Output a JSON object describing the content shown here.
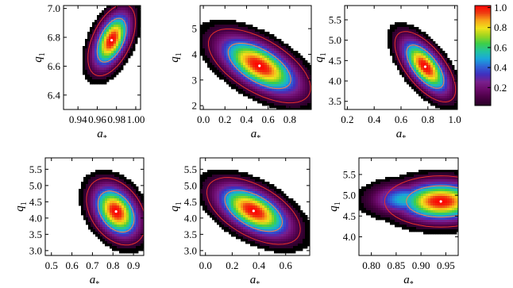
{
  "figure": {
    "colorbar": {
      "ticks": [
        {
          "value": 1.0,
          "label": "1.0"
        },
        {
          "value": 0.8,
          "label": "0.8"
        },
        {
          "value": 0.6,
          "label": "0.6"
        },
        {
          "value": 0.4,
          "label": "0.4"
        },
        {
          "value": 0.2,
          "label": "0.2"
        }
      ],
      "colormap": [
        "#2a0028",
        "#4a0045",
        "#6b0a6a",
        "#7a1f8c",
        "#3f2fbf",
        "#2f64d6",
        "#1aa6dc",
        "#22c49e",
        "#3ccf4a",
        "#9ed51f",
        "#f1e21c",
        "#f7a419",
        "#ee3a12",
        "#ff0000"
      ]
    }
  },
  "chart_data": [
    {
      "type": "heatmap",
      "xlabel": "a*",
      "ylabel": "q1",
      "xlim": [
        0.925,
        1.005
      ],
      "ylim": [
        6.3,
        7.02
      ],
      "xticks": [
        {
          "value": 0.94,
          "label": "0.94"
        },
        {
          "value": 0.96,
          "label": "0.96"
        },
        {
          "value": 0.98,
          "label": "0.98"
        },
        {
          "value": 1.0,
          "label": "1.00"
        }
      ],
      "yticks": [
        {
          "value": 6.4,
          "label": "6.4"
        },
        {
          "value": 6.6,
          "label": "6.6"
        },
        {
          "value": 6.8,
          "label": "6.8"
        },
        {
          "value": 7.0,
          "label": "7.0"
        }
      ],
      "peak": {
        "x": 0.975,
        "y": 6.78
      },
      "spread": {
        "x": 0.012,
        "y": 0.12
      },
      "corr": 0.5
    },
    {
      "type": "heatmap",
      "xlabel": "a*",
      "ylabel": "q1",
      "xlim": [
        -0.03,
        1.0
      ],
      "ylim": [
        1.85,
        5.9
      ],
      "xticks": [
        {
          "value": 0.0,
          "label": "0.0"
        },
        {
          "value": 0.2,
          "label": "0.2"
        },
        {
          "value": 0.4,
          "label": "0.4"
        },
        {
          "value": 0.6,
          "label": "0.6"
        },
        {
          "value": 0.8,
          "label": "0.8"
        }
      ],
      "yticks": [
        {
          "value": 2,
          "label": "2"
        },
        {
          "value": 3,
          "label": "3"
        },
        {
          "value": 4,
          "label": "4"
        },
        {
          "value": 5,
          "label": "5"
        }
      ],
      "peak": {
        "x": 0.52,
        "y": 3.55
      },
      "spread": {
        "x": 0.23,
        "y": 0.7
      },
      "corr": -0.6
    },
    {
      "type": "heatmap",
      "xlabel": "a*",
      "ylabel": "q1",
      "xlim": [
        0.18,
        1.02
      ],
      "ylim": [
        3.3,
        5.85
      ],
      "xticks": [
        {
          "value": 0.2,
          "label": "0.2"
        },
        {
          "value": 0.4,
          "label": "0.4"
        },
        {
          "value": 0.6,
          "label": "0.6"
        },
        {
          "value": 0.8,
          "label": "0.8"
        },
        {
          "value": 1.0,
          "label": "1.0"
        }
      ],
      "yticks": [
        {
          "value": 3.5,
          "label": "3.5"
        },
        {
          "value": 4.0,
          "label": "4.0"
        },
        {
          "value": 4.5,
          "label": "4.5"
        },
        {
          "value": 5.0,
          "label": "5.0"
        },
        {
          "value": 5.5,
          "label": "5.5"
        }
      ],
      "peak": {
        "x": 0.78,
        "y": 4.35
      },
      "spread": {
        "x": 0.11,
        "y": 0.42
      },
      "corr": -0.65
    },
    {
      "type": "heatmap",
      "xlabel": "a*",
      "ylabel": "q1",
      "xlim": [
        0.47,
        0.95
      ],
      "ylim": [
        2.85,
        5.85
      ],
      "xticks": [
        {
          "value": 0.5,
          "label": "0.5"
        },
        {
          "value": 0.6,
          "label": "0.6"
        },
        {
          "value": 0.7,
          "label": "0.7"
        },
        {
          "value": 0.8,
          "label": "0.8"
        },
        {
          "value": 0.9,
          "label": "0.9"
        }
      ],
      "yticks": [
        {
          "value": 3.0,
          "label": "3.0"
        },
        {
          "value": 3.5,
          "label": "3.5"
        },
        {
          "value": 4.0,
          "label": "4.0"
        },
        {
          "value": 4.5,
          "label": "4.5"
        },
        {
          "value": 5.0,
          "label": "5.0"
        },
        {
          "value": 5.5,
          "label": "5.5"
        }
      ],
      "peak": {
        "x": 0.815,
        "y": 4.2
      },
      "spread": {
        "x": 0.07,
        "y": 0.5
      },
      "corr": -0.35
    },
    {
      "type": "heatmap",
      "xlabel": "a*",
      "ylabel": "q1",
      "xlim": [
        -0.04,
        0.78
      ],
      "ylim": [
        2.85,
        5.85
      ],
      "xticks": [
        {
          "value": 0.0,
          "label": "0.0"
        },
        {
          "value": 0.2,
          "label": "0.2"
        },
        {
          "value": 0.4,
          "label": "0.4"
        },
        {
          "value": 0.6,
          "label": "0.6"
        }
      ],
      "yticks": [
        {
          "value": 3.0,
          "label": "3.0"
        },
        {
          "value": 3.5,
          "label": "3.5"
        },
        {
          "value": 4.0,
          "label": "4.0"
        },
        {
          "value": 4.5,
          "label": "4.5"
        },
        {
          "value": 5.0,
          "label": "5.0"
        },
        {
          "value": 5.5,
          "label": "5.5"
        }
      ],
      "peak": {
        "x": 0.36,
        "y": 4.22
      },
      "spread": {
        "x": 0.17,
        "y": 0.5
      },
      "corr": -0.55
    },
    {
      "type": "heatmap",
      "xlabel": "a*",
      "ylabel": "q1",
      "xlim": [
        0.775,
        0.975
      ],
      "ylim": [
        3.55,
        5.9
      ],
      "xticks": [
        {
          "value": 0.8,
          "label": "0.80"
        },
        {
          "value": 0.85,
          "label": "0.85"
        },
        {
          "value": 0.9,
          "label": "0.90"
        },
        {
          "value": 0.95,
          "label": "0.95"
        }
      ],
      "yticks": [
        {
          "value": 4.0,
          "label": "4.0"
        },
        {
          "value": 4.5,
          "label": "4.5"
        },
        {
          "value": 5.0,
          "label": "5.0"
        },
        {
          "value": 5.5,
          "label": "5.5"
        }
      ],
      "peak": {
        "x": 0.94,
        "y": 4.85
      },
      "spread": {
        "x": 0.055,
        "y": 0.3
      },
      "corr": 0.0,
      "secondary": {
        "x": 0.87,
        "y": 4.9,
        "weight": 0.55
      }
    }
  ]
}
